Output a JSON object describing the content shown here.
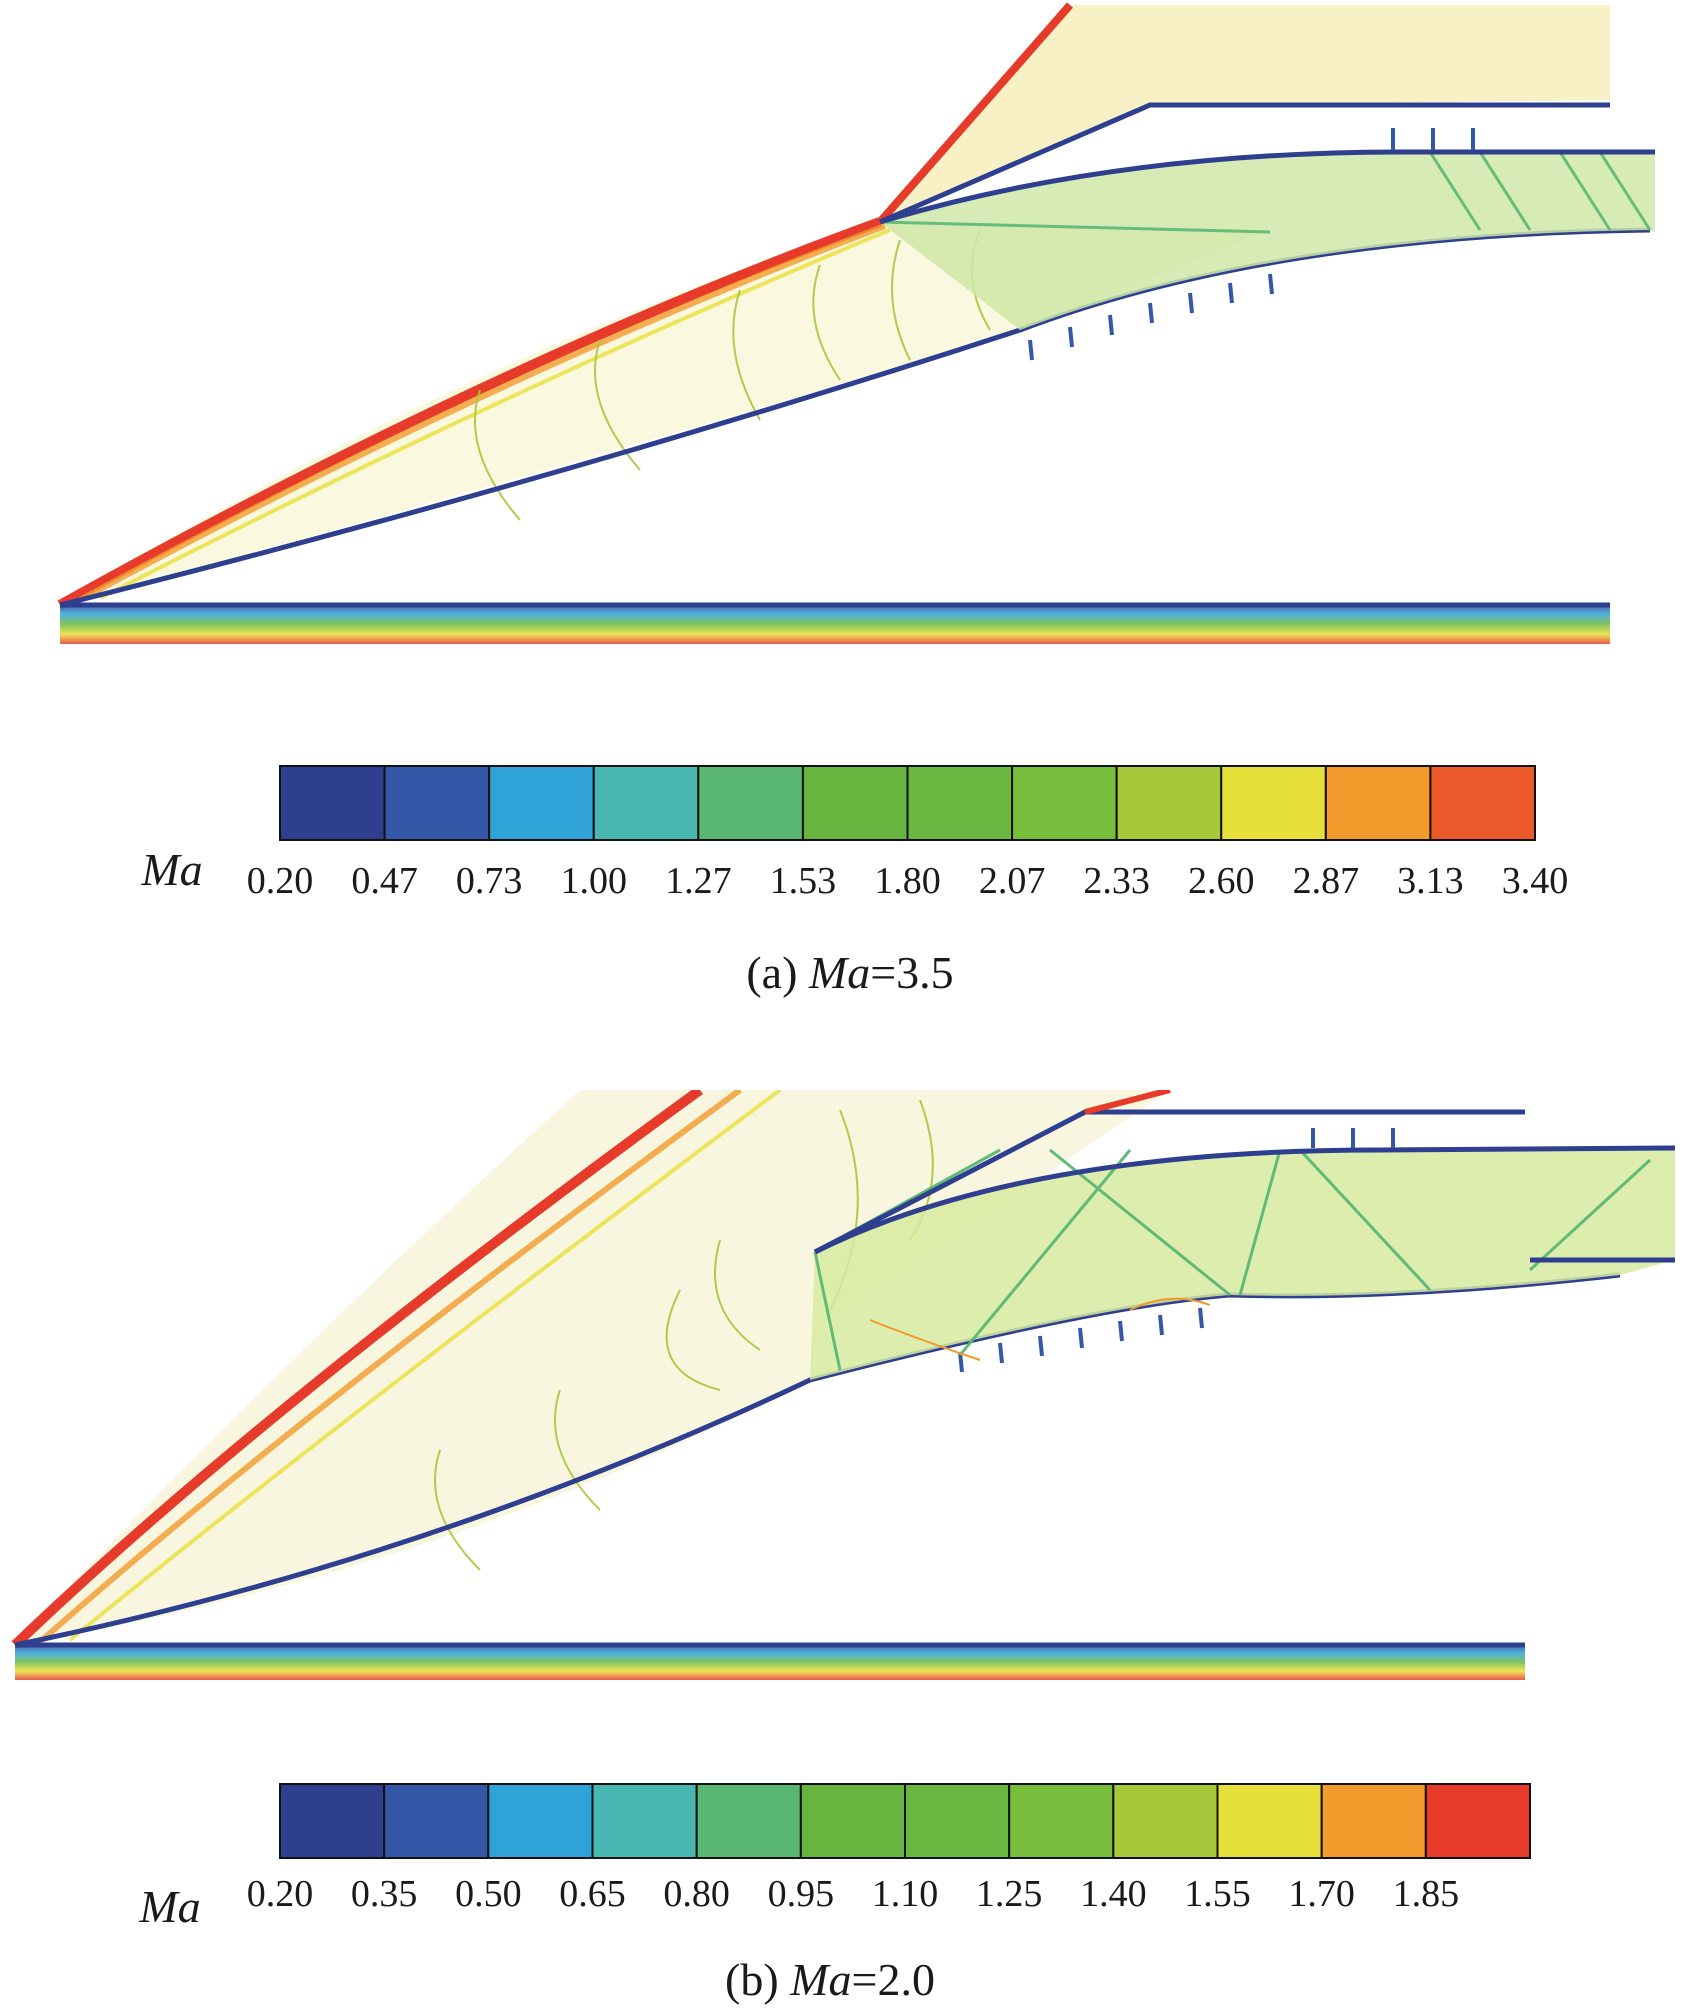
{
  "panels": [
    {
      "caption": {
        "prefix": "(a) ",
        "var": "Ma",
        "suffix": "=3.5"
      },
      "legend": {
        "label": "Ma",
        "ticks": [
          "0.20",
          "0.47",
          "0.73",
          "1.00",
          "1.27",
          "1.53",
          "1.80",
          "2.07",
          "2.33",
          "2.60",
          "2.87",
          "3.13",
          "3.40"
        ],
        "colors": [
          "#2e3f8f",
          "#3557a8",
          "#2fa3d8",
          "#48b7b2",
          "#5ab773",
          "#67b53e",
          "#6ab842",
          "#78bd3c",
          "#a7c83a",
          "#e8e03a",
          "#f29a2c",
          "#ec5a2c",
          "#e63b2a"
        ]
      }
    },
    {
      "caption": {
        "prefix": "(b) ",
        "var": "Ma",
        "suffix": "=2.0"
      },
      "legend": {
        "label": "Ma",
        "ticks": [
          "0.20",
          "0.35",
          "0.50",
          "0.65",
          "0.80",
          "0.95",
          "1.10",
          "1.25",
          "1.40",
          "1.55",
          "1.70",
          "1.85"
        ],
        "colors": [
          "#2e3f8f",
          "#3557a8",
          "#2fa3d8",
          "#48b7b2",
          "#5ab773",
          "#67b53e",
          "#6ab842",
          "#78bd3c",
          "#a7c83a",
          "#e8e03a",
          "#f29a2c",
          "#e63b2a"
        ]
      }
    }
  ]
}
